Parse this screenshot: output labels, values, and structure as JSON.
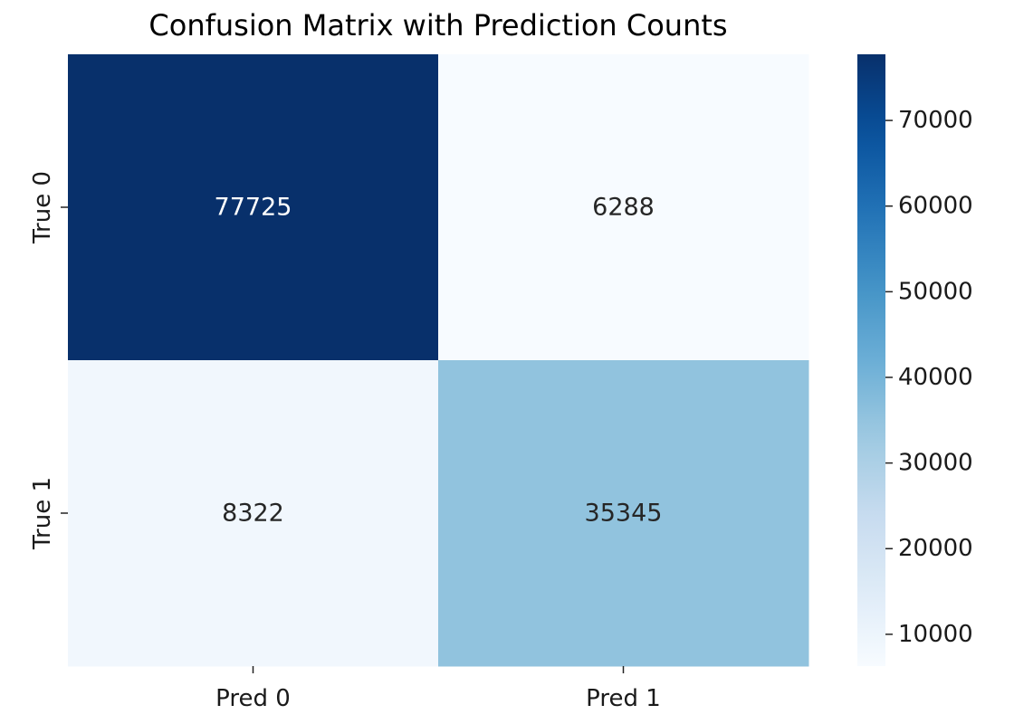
{
  "chart_data": {
    "type": "heatmap",
    "title": "Confusion Matrix with Prediction Counts",
    "x_categories": [
      "Pred 0",
      "Pred 1"
    ],
    "y_categories": [
      "True 0",
      "True 1"
    ],
    "values": [
      [
        77725,
        6288
      ],
      [
        8322,
        35345
      ]
    ],
    "colormap": "Blues",
    "colorbar": {
      "min": 6288,
      "max": 77725,
      "ticks": [
        10000,
        20000,
        30000,
        40000,
        50000,
        60000,
        70000
      ],
      "tick_labels": [
        "10000",
        "20000",
        "30000",
        "40000",
        "50000",
        "60000",
        "70000"
      ]
    },
    "annotate_cells": true
  }
}
